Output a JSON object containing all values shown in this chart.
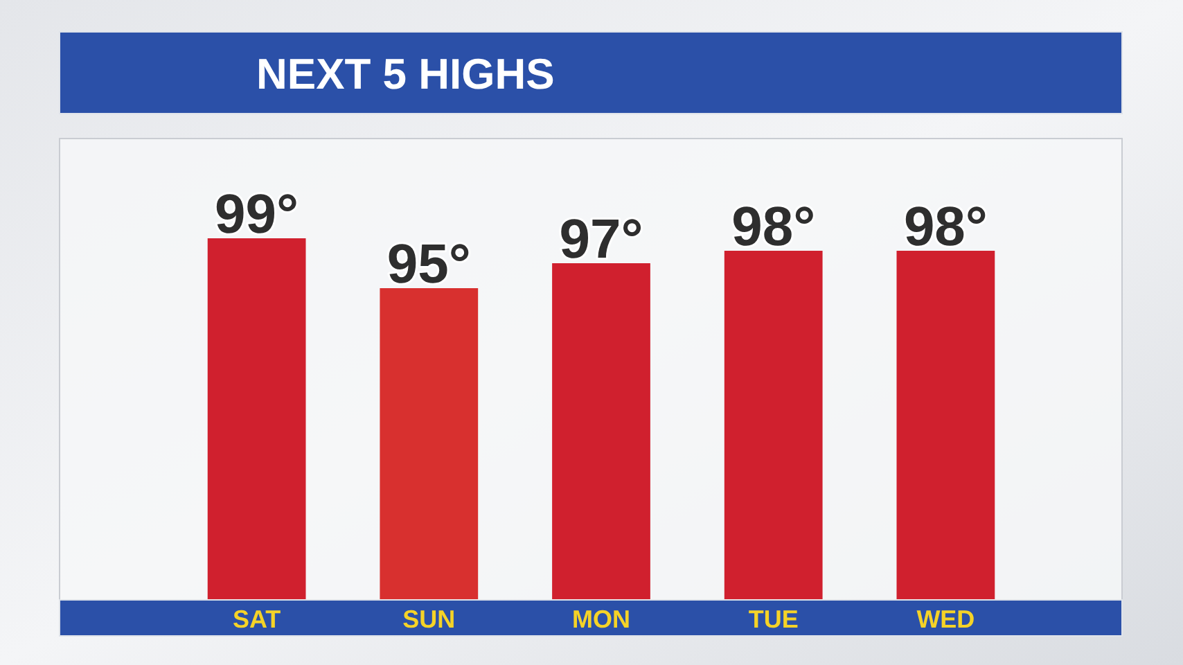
{
  "chart_data": {
    "type": "bar",
    "title": "NEXT 5 HIGHS",
    "categories": [
      "SAT",
      "SUN",
      "MON",
      "TUE",
      "WED"
    ],
    "values": [
      99,
      95,
      97,
      98,
      98
    ],
    "value_labels": [
      "99°",
      "95°",
      "97°",
      "98°",
      "98°"
    ],
    "colors": [
      "#d0202e",
      "#d8302f",
      "#d0202e",
      "#d0202e",
      "#d0202e"
    ],
    "ylim": [
      70,
      107
    ]
  }
}
